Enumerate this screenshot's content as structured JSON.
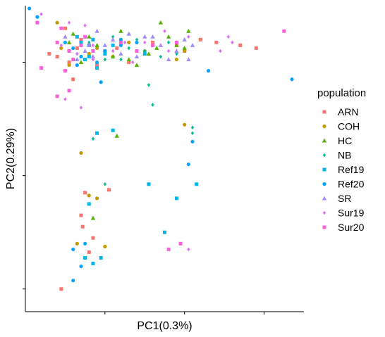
{
  "chart_data": {
    "type": "scatter",
    "xlabel": "PC1(0.3%)",
    "ylabel": "PC2(0.29%)",
    "xlim": [
      -1.0,
      2.5
    ],
    "ylim": [
      -4.4,
      1.0
    ],
    "grid": false,
    "legend": {
      "title": "population",
      "position": "right"
    },
    "series": [
      {
        "name": "ARN",
        "color": "#F8766D",
        "shape": "square",
        "points": [
          [
            -0.5,
            0.6
          ],
          [
            -0.3,
            0.4
          ],
          [
            -0.6,
            0.1
          ],
          [
            -0.2,
            0.3
          ],
          [
            0.0,
            0.2
          ],
          [
            -0.4,
            -0.3
          ],
          [
            0.3,
            0.0
          ],
          [
            0.6,
            0.35
          ],
          [
            1.0,
            0.2
          ],
          [
            1.2,
            0.4
          ],
          [
            1.4,
            0.35
          ],
          [
            1.7,
            0.3
          ],
          [
            1.9,
            0.25
          ],
          [
            -0.7,
            0.15
          ],
          [
            -0.1,
            -0.05
          ],
          [
            0.15,
            0.25
          ],
          [
            0.9,
            0.3
          ],
          [
            -0.35,
            0.25
          ],
          [
            -0.25,
            -2.3
          ],
          [
            -0.3,
            -2.7
          ],
          [
            -0.28,
            -2.9
          ],
          [
            -0.15,
            -3.1
          ],
          [
            0.05,
            -2.25
          ],
          [
            -0.55,
            -4.0
          ],
          [
            -0.2,
            -3.35
          ],
          [
            -0.45,
            0.0
          ]
        ]
      },
      {
        "name": "COH",
        "color": "#C49A00",
        "shape": "circle",
        "points": [
          [
            -0.6,
            0.7
          ],
          [
            -0.3,
            0.3
          ],
          [
            -0.45,
            -0.05
          ],
          [
            0.1,
            0.1
          ],
          [
            0.5,
            0.2
          ],
          [
            0.9,
            0.05
          ],
          [
            1.0,
            0.2
          ],
          [
            -0.1,
            0.25
          ],
          [
            -0.3,
            -1.6
          ],
          [
            -0.2,
            -2.35
          ],
          [
            -0.1,
            -2.4
          ],
          [
            0.0,
            -3.25
          ],
          [
            -0.35,
            -3.2
          ],
          [
            1.0,
            -1.1
          ],
          [
            -0.2,
            0.15
          ],
          [
            0.3,
            0.35
          ],
          [
            -0.55,
            0.25
          ]
        ]
      },
      {
        "name": "HC",
        "color": "#53B400",
        "shape": "triangle",
        "points": [
          [
            -0.4,
            0.5
          ],
          [
            -0.2,
            0.45
          ],
          [
            0.2,
            0.55
          ],
          [
            0.7,
            0.7
          ],
          [
            0.8,
            0.45
          ],
          [
            0.55,
            0.15
          ],
          [
            0.3,
            0.05
          ],
          [
            0.1,
            0.1
          ],
          [
            -0.1,
            0.3
          ],
          [
            -0.3,
            0.0
          ],
          [
            0.9,
            0.3
          ],
          [
            1.0,
            0.25
          ],
          [
            0.65,
            0.25
          ],
          [
            0.15,
            -1.3
          ],
          [
            0.4,
            -0.05
          ],
          [
            -0.15,
            -2.75
          ],
          [
            1.05,
            0.55
          ],
          [
            -0.45,
            0.35
          ]
        ]
      },
      {
        "name": "NB",
        "color": "#00C094",
        "shape": "diamond",
        "points": [
          [
            -0.2,
            0.35
          ],
          [
            0.1,
            0.45
          ],
          [
            0.3,
            0.5
          ],
          [
            0.6,
            0.3
          ],
          [
            0.8,
            0.35
          ],
          [
            0.4,
            0.4
          ],
          [
            0.5,
            0.2
          ],
          [
            -0.35,
            0.15
          ],
          [
            0.0,
            0.05
          ],
          [
            0.7,
            0.1
          ],
          [
            0.55,
            -0.4
          ],
          [
            0.6,
            -0.75
          ],
          [
            1.1,
            -1.15
          ],
          [
            1.1,
            -1.25
          ],
          [
            -0.15,
            -1.35
          ],
          [
            0.0,
            -2.15
          ],
          [
            -0.2,
            -2.5
          ],
          [
            0.2,
            0.05
          ],
          [
            0.9,
            0.15
          ],
          [
            0.3,
            0.25
          ]
        ]
      },
      {
        "name": "Ref19",
        "color": "#00B6EB",
        "shape": "square",
        "points": [
          [
            -0.45,
            0.2
          ],
          [
            -0.3,
            0.35
          ],
          [
            -0.2,
            0.1
          ],
          [
            0.0,
            0.15
          ],
          [
            -0.1,
            -0.1
          ],
          [
            0.1,
            0.3
          ],
          [
            -0.35,
            0.45
          ],
          [
            -0.15,
            0.4
          ],
          [
            0.5,
            0.15
          ],
          [
            -0.25,
            0.05
          ],
          [
            0.1,
            -1.2
          ],
          [
            -0.1,
            -1.25
          ],
          [
            0.55,
            -2.15
          ],
          [
            1.15,
            -2.15
          ],
          [
            0.9,
            -2.4
          ],
          [
            -0.2,
            -2.5
          ],
          [
            0.75,
            -3.0
          ],
          [
            -0.25,
            -3.45
          ],
          [
            -0.15,
            -3.55
          ],
          [
            -0.05,
            -3.45
          ]
        ]
      },
      {
        "name": "Ref20",
        "color": "#06A4FF",
        "shape": "circle",
        "points": [
          [
            -0.95,
            0.95
          ],
          [
            -0.85,
            0.8
          ],
          [
            -0.4,
            0.25
          ],
          [
            -0.2,
            0.3
          ],
          [
            0.0,
            0.2
          ],
          [
            -0.3,
            0.1
          ],
          [
            -0.1,
            0.0
          ],
          [
            0.2,
            0.3
          ],
          [
            -0.35,
            -0.05
          ],
          [
            -0.05,
            -0.35
          ],
          [
            0.2,
            0.4
          ],
          [
            1.3,
            -0.15
          ],
          [
            2.35,
            -0.3
          ],
          [
            1.1,
            -1.4
          ],
          [
            1.05,
            -1.8
          ],
          [
            -0.25,
            -3.2
          ],
          [
            -0.4,
            -3.3
          ],
          [
            -0.3,
            -3.6
          ],
          [
            -0.4,
            -3.85
          ],
          [
            -0.5,
            0.35
          ],
          [
            0.4,
            0.35
          ]
        ]
      },
      {
        "name": "SR",
        "color": "#A58AFF",
        "shape": "triangle",
        "points": [
          [
            -0.5,
            0.45
          ],
          [
            -0.2,
            0.3
          ],
          [
            -0.1,
            0.55
          ],
          [
            0.1,
            0.4
          ],
          [
            0.2,
            0.15
          ],
          [
            0.3,
            0.5
          ],
          [
            0.5,
            0.45
          ],
          [
            0.7,
            0.3
          ],
          [
            0.9,
            0.2
          ],
          [
            1.0,
            0.4
          ],
          [
            -0.35,
            0.05
          ],
          [
            -0.15,
            0.1
          ],
          [
            0.0,
            0.3
          ],
          [
            0.4,
            0.1
          ],
          [
            0.8,
            0.05
          ],
          [
            1.05,
            0.05
          ],
          [
            1.1,
            0.3
          ],
          [
            -0.25,
            0.2
          ],
          [
            0.6,
            0.45
          ]
        ]
      },
      {
        "name": "Sur19",
        "color": "#DF70F8",
        "shape": "diamond",
        "points": [
          [
            -0.8,
            0.85
          ],
          [
            -0.45,
            0.7
          ],
          [
            -0.25,
            0.65
          ],
          [
            -0.55,
            0.3
          ],
          [
            -0.35,
            0.15
          ],
          [
            -0.15,
            0.05
          ],
          [
            0.1,
            0.2
          ],
          [
            0.25,
            0.35
          ],
          [
            0.5,
            0.35
          ],
          [
            0.75,
            0.55
          ],
          [
            1.05,
            0.45
          ],
          [
            1.55,
            0.45
          ],
          [
            1.6,
            0.35
          ],
          [
            -0.5,
            -0.65
          ],
          [
            -0.3,
            -0.8
          ],
          [
            1.05,
            -3.3
          ],
          [
            -0.15,
            0.3
          ],
          [
            0.35,
            0.0
          ],
          [
            0.8,
            0.2
          ],
          [
            1.45,
            0.2
          ]
        ]
      },
      {
        "name": "Sur20",
        "color": "#FB61D7",
        "shape": "square",
        "points": [
          [
            -0.85,
            0.7
          ],
          [
            -0.55,
            0.6
          ],
          [
            -0.45,
            0.2
          ],
          [
            -0.6,
            0.35
          ],
          [
            -0.25,
            0.45
          ],
          [
            -0.4,
            0.05
          ],
          [
            -0.15,
            0.2
          ],
          [
            -0.8,
            -0.1
          ],
          [
            -0.5,
            -0.15
          ],
          [
            -0.45,
            -0.5
          ],
          [
            0.2,
            0.35
          ],
          [
            0.4,
            0.2
          ],
          [
            0.6,
            0.3
          ],
          [
            0.95,
            -3.2
          ],
          [
            0.8,
            -3.3
          ],
          [
            2.25,
            0.55
          ],
          [
            -0.3,
            0.3
          ],
          [
            -0.6,
            -0.6
          ],
          [
            0.9,
            0.35
          ]
        ]
      }
    ]
  }
}
